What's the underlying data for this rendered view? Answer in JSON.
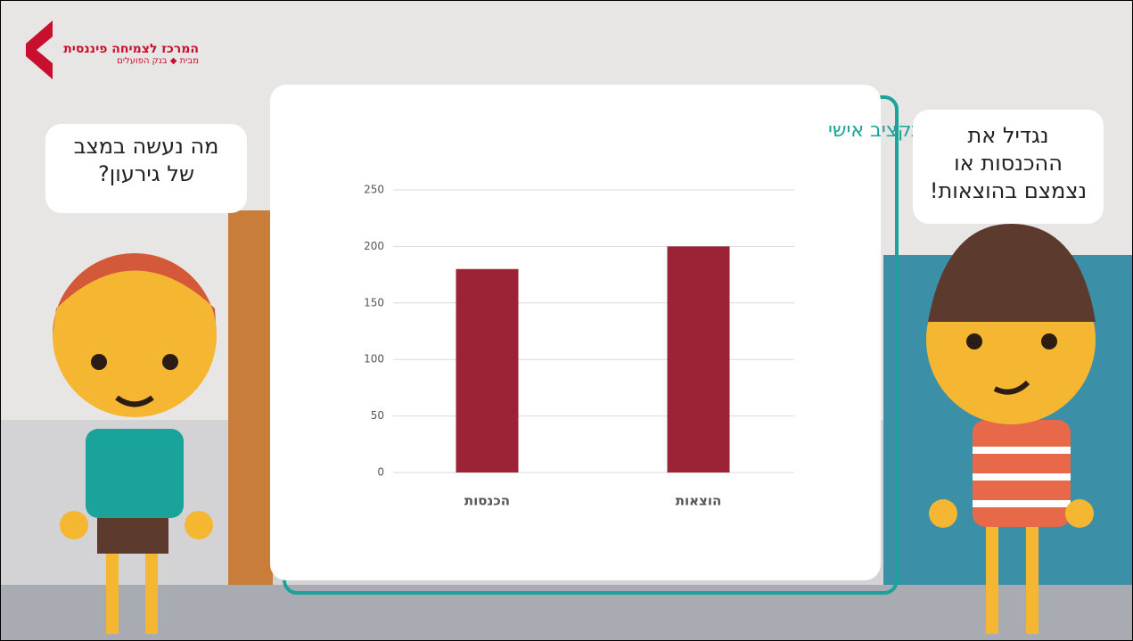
{
  "logo": {
    "title": "המרכז לצמיחה פיננסית",
    "subtitle_prefix": "מבית",
    "subtitle_bank": "בנק הפועלים"
  },
  "left_bubble": {
    "lines": [
      "מה נעשה במצב",
      "של גירעון?"
    ]
  },
  "right_bubble": {
    "lines": [
      "נגדיל את",
      "ההכנסות או",
      "נצמצם בהוצאות!"
    ]
  },
  "chart_data": {
    "type": "bar",
    "title": "תקציב אישי",
    "categories": [
      "הכנסות",
      "הוצאות"
    ],
    "values": [
      180,
      200
    ],
    "color": "#9b2335",
    "ylim": [
      0,
      250
    ],
    "yticks": [
      0,
      50,
      100,
      150,
      200,
      250
    ],
    "grid": true
  }
}
